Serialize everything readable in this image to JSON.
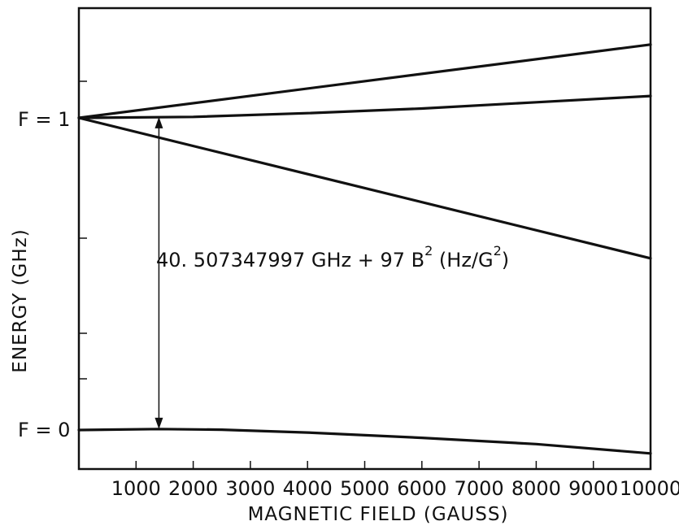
{
  "chart_data": {
    "type": "line",
    "title": "",
    "xlabel": "MAGNETIC FIELD (GAUSS)",
    "ylabel": "ENERGY (GHz)",
    "xlim": [
      0,
      10000
    ],
    "x_ticks": [
      1000,
      2000,
      3000,
      4000,
      5000,
      6000,
      7000,
      8000,
      9000,
      10000
    ],
    "y_tick_labels": [
      "F = 1",
      "F = 0"
    ],
    "y_level_values": {
      "F = 1": 1.0,
      "F = 0": 0.0
    },
    "ylim": [
      -0.1,
      1.25
    ],
    "grid": false,
    "annotation": {
      "x": 1400,
      "text_main": "40. 507347997 GHz + 97 B",
      "text_sup1": "2",
      "text_mid": " (Hz/G",
      "text_sup2": "2",
      "text_end": ")"
    },
    "series": [
      {
        "x": [
          0,
          10000
        ],
        "y": [
          1.0,
          1.235
        ]
      },
      {
        "x": [
          0,
          2000,
          4000,
          6000,
          8000,
          10000
        ],
        "y": [
          1.0,
          1.003,
          1.015,
          1.03,
          1.05,
          1.07
        ]
      },
      {
        "x": [
          0,
          10000
        ],
        "y": [
          1.0,
          0.55
        ]
      },
      {
        "x": [
          0,
          1400,
          2500,
          4000,
          6000,
          8000,
          10000
        ],
        "y": [
          0.0,
          0.003,
          0.001,
          -0.008,
          -0.025,
          -0.045,
          -0.075
        ]
      }
    ]
  }
}
